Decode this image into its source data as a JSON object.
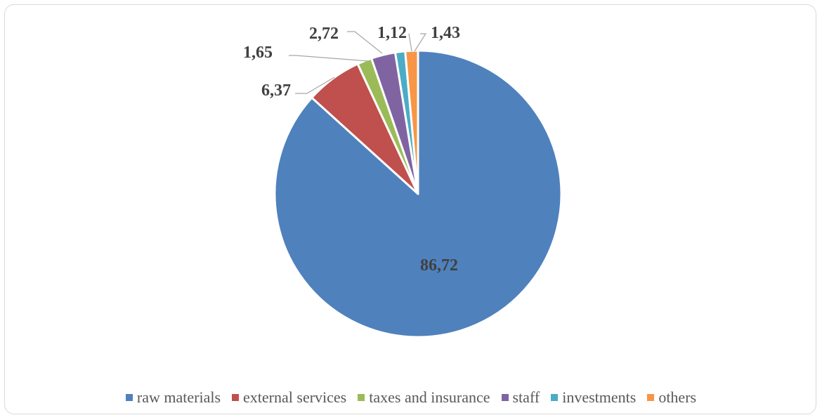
{
  "chart_data": {
    "type": "pie",
    "title": "",
    "start_angle_deg": 0,
    "direction": "clockwise",
    "legend_position": "bottom",
    "slices": [
      {
        "name": "raw materials",
        "value": 86.72,
        "label": "86,72",
        "color": "#4f81bd"
      },
      {
        "name": "external services",
        "value": 6.37,
        "label": "6,37",
        "color": "#c0504d"
      },
      {
        "name": "taxes and insurance",
        "value": 1.65,
        "label": "1,65",
        "color": "#9bbb59"
      },
      {
        "name": "staff",
        "value": 2.72,
        "label": "2,72",
        "color": "#8064a2"
      },
      {
        "name": "investments",
        "value": 1.12,
        "label": "1,12",
        "color": "#4bacc6"
      },
      {
        "name": "others",
        "value": 1.43,
        "label": "1,43",
        "color": "#f79646"
      }
    ]
  }
}
